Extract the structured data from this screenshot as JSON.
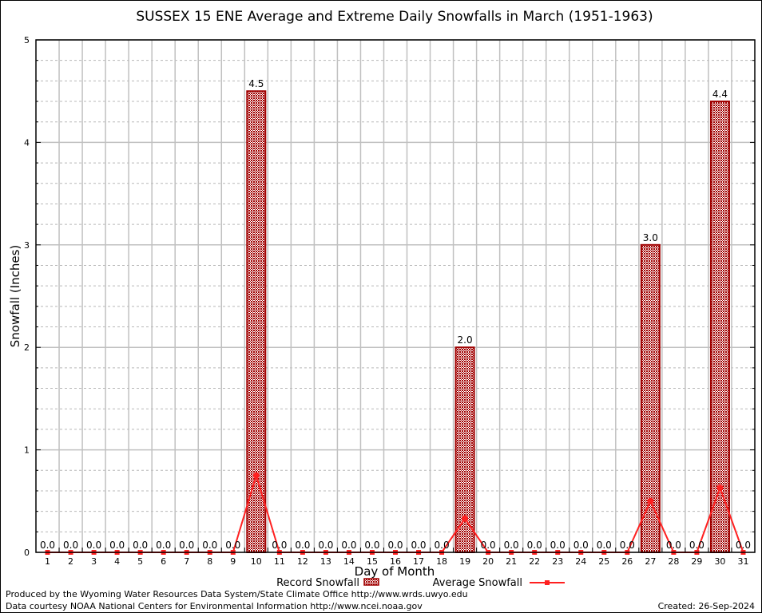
{
  "chart_data": {
    "type": "bar",
    "title": "SUSSEX 15 ENE Average and Extreme Daily Snowfalls in March (1951-1963)",
    "xlabel": "Day of Month",
    "ylabel": "Snowfall (Inches)",
    "ylim": [
      0,
      5
    ],
    "yticks": [
      "0",
      "1",
      "2",
      "3",
      "4",
      "5"
    ],
    "grid": true,
    "legend_placement": "bottom",
    "categories": [
      "1",
      "2",
      "3",
      "4",
      "5",
      "6",
      "7",
      "8",
      "9",
      "10",
      "11",
      "12",
      "13",
      "14",
      "15",
      "16",
      "17",
      "18",
      "19",
      "20",
      "21",
      "22",
      "23",
      "24",
      "25",
      "26",
      "27",
      "28",
      "29",
      "30",
      "31"
    ],
    "series": [
      {
        "name": "Record Snowfall",
        "type": "bar",
        "color": "#a00000",
        "values": [
          0,
          0,
          0,
          0,
          0,
          0,
          0,
          0,
          0,
          4.5,
          0,
          0,
          0,
          0,
          0,
          0,
          0,
          0,
          2.0,
          0,
          0,
          0,
          0,
          0,
          0,
          0,
          3.0,
          0,
          0,
          4.4,
          0
        ],
        "labels": [
          "0.0",
          "0.0",
          "0.0",
          "0.0",
          "0.0",
          "0.0",
          "0.0",
          "0.0",
          "0.0",
          "4.5",
          "0.0",
          "0.0",
          "0.0",
          "0.0",
          "0.0",
          "0.0",
          "0.0",
          "0.0",
          "2.0",
          "0.0",
          "0.0",
          "0.0",
          "0.0",
          "0.0",
          "0.0",
          "0.0",
          "3.0",
          "0.0",
          "0.0",
          "4.4",
          "0.0"
        ]
      },
      {
        "name": "Average Snowfall",
        "type": "line",
        "color": "#ff2020",
        "values": [
          0,
          0,
          0,
          0,
          0,
          0,
          0,
          0,
          0,
          0.75,
          0,
          0,
          0,
          0,
          0,
          0,
          0,
          0,
          0.33,
          0,
          0,
          0,
          0,
          0,
          0,
          0,
          0.5,
          0,
          0,
          0.63,
          0
        ]
      }
    ]
  },
  "footer": {
    "produced_by": "Produced by the Wyoming Water Resources Data System/State Climate Office http://www.wrds.uwyo.edu",
    "courtesy": "Data courtesy NOAA National Centers for Environmental Information http://www.ncei.noaa.gov",
    "created": "Created: 26-Sep-2024"
  }
}
